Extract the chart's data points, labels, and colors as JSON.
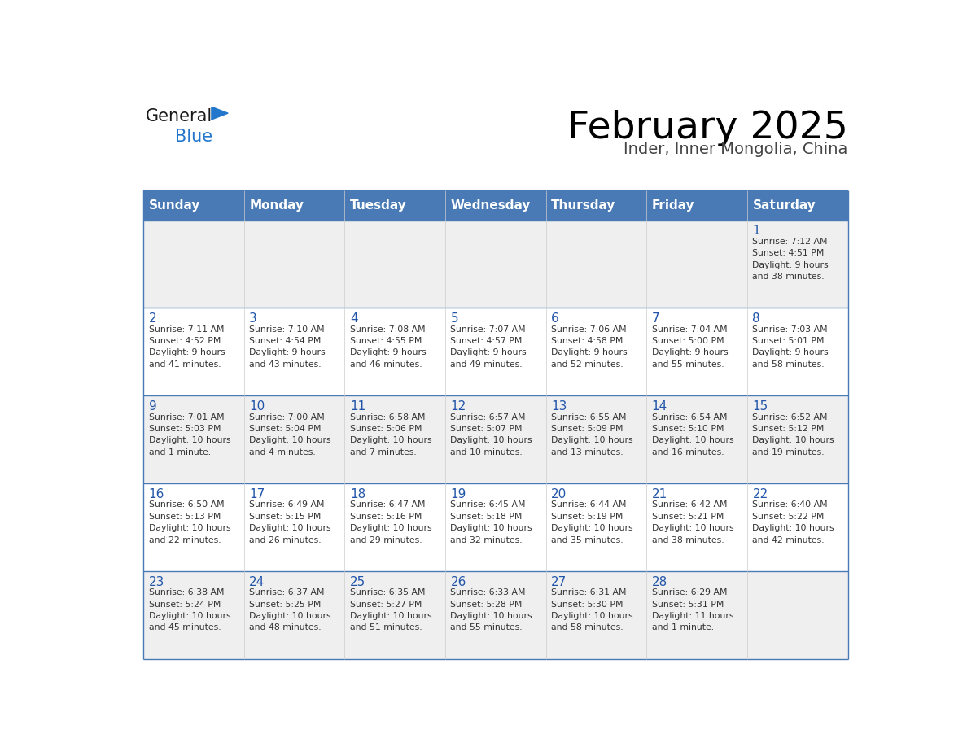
{
  "title": "February 2025",
  "subtitle": "Inder, Inner Mongolia, China",
  "header_color": "#4a7ab5",
  "header_text_color": "#ffffff",
  "cell_bg_odd": "#efefef",
  "cell_bg_even": "#ffffff",
  "day_text_color": "#2255aa",
  "info_text_color": "#333333",
  "border_color": "#4a7ab5",
  "days_of_week": [
    "Sunday",
    "Monday",
    "Tuesday",
    "Wednesday",
    "Thursday",
    "Friday",
    "Saturday"
  ],
  "weeks": [
    [
      {
        "day": "",
        "info": ""
      },
      {
        "day": "",
        "info": ""
      },
      {
        "day": "",
        "info": ""
      },
      {
        "day": "",
        "info": ""
      },
      {
        "day": "",
        "info": ""
      },
      {
        "day": "",
        "info": ""
      },
      {
        "day": "1",
        "info": "Sunrise: 7:12 AM\nSunset: 4:51 PM\nDaylight: 9 hours\nand 38 minutes."
      }
    ],
    [
      {
        "day": "2",
        "info": "Sunrise: 7:11 AM\nSunset: 4:52 PM\nDaylight: 9 hours\nand 41 minutes."
      },
      {
        "day": "3",
        "info": "Sunrise: 7:10 AM\nSunset: 4:54 PM\nDaylight: 9 hours\nand 43 minutes."
      },
      {
        "day": "4",
        "info": "Sunrise: 7:08 AM\nSunset: 4:55 PM\nDaylight: 9 hours\nand 46 minutes."
      },
      {
        "day": "5",
        "info": "Sunrise: 7:07 AM\nSunset: 4:57 PM\nDaylight: 9 hours\nand 49 minutes."
      },
      {
        "day": "6",
        "info": "Sunrise: 7:06 AM\nSunset: 4:58 PM\nDaylight: 9 hours\nand 52 minutes."
      },
      {
        "day": "7",
        "info": "Sunrise: 7:04 AM\nSunset: 5:00 PM\nDaylight: 9 hours\nand 55 minutes."
      },
      {
        "day": "8",
        "info": "Sunrise: 7:03 AM\nSunset: 5:01 PM\nDaylight: 9 hours\nand 58 minutes."
      }
    ],
    [
      {
        "day": "9",
        "info": "Sunrise: 7:01 AM\nSunset: 5:03 PM\nDaylight: 10 hours\nand 1 minute."
      },
      {
        "day": "10",
        "info": "Sunrise: 7:00 AM\nSunset: 5:04 PM\nDaylight: 10 hours\nand 4 minutes."
      },
      {
        "day": "11",
        "info": "Sunrise: 6:58 AM\nSunset: 5:06 PM\nDaylight: 10 hours\nand 7 minutes."
      },
      {
        "day": "12",
        "info": "Sunrise: 6:57 AM\nSunset: 5:07 PM\nDaylight: 10 hours\nand 10 minutes."
      },
      {
        "day": "13",
        "info": "Sunrise: 6:55 AM\nSunset: 5:09 PM\nDaylight: 10 hours\nand 13 minutes."
      },
      {
        "day": "14",
        "info": "Sunrise: 6:54 AM\nSunset: 5:10 PM\nDaylight: 10 hours\nand 16 minutes."
      },
      {
        "day": "15",
        "info": "Sunrise: 6:52 AM\nSunset: 5:12 PM\nDaylight: 10 hours\nand 19 minutes."
      }
    ],
    [
      {
        "day": "16",
        "info": "Sunrise: 6:50 AM\nSunset: 5:13 PM\nDaylight: 10 hours\nand 22 minutes."
      },
      {
        "day": "17",
        "info": "Sunrise: 6:49 AM\nSunset: 5:15 PM\nDaylight: 10 hours\nand 26 minutes."
      },
      {
        "day": "18",
        "info": "Sunrise: 6:47 AM\nSunset: 5:16 PM\nDaylight: 10 hours\nand 29 minutes."
      },
      {
        "day": "19",
        "info": "Sunrise: 6:45 AM\nSunset: 5:18 PM\nDaylight: 10 hours\nand 32 minutes."
      },
      {
        "day": "20",
        "info": "Sunrise: 6:44 AM\nSunset: 5:19 PM\nDaylight: 10 hours\nand 35 minutes."
      },
      {
        "day": "21",
        "info": "Sunrise: 6:42 AM\nSunset: 5:21 PM\nDaylight: 10 hours\nand 38 minutes."
      },
      {
        "day": "22",
        "info": "Sunrise: 6:40 AM\nSunset: 5:22 PM\nDaylight: 10 hours\nand 42 minutes."
      }
    ],
    [
      {
        "day": "23",
        "info": "Sunrise: 6:38 AM\nSunset: 5:24 PM\nDaylight: 10 hours\nand 45 minutes."
      },
      {
        "day": "24",
        "info": "Sunrise: 6:37 AM\nSunset: 5:25 PM\nDaylight: 10 hours\nand 48 minutes."
      },
      {
        "day": "25",
        "info": "Sunrise: 6:35 AM\nSunset: 5:27 PM\nDaylight: 10 hours\nand 51 minutes."
      },
      {
        "day": "26",
        "info": "Sunrise: 6:33 AM\nSunset: 5:28 PM\nDaylight: 10 hours\nand 55 minutes."
      },
      {
        "day": "27",
        "info": "Sunrise: 6:31 AM\nSunset: 5:30 PM\nDaylight: 10 hours\nand 58 minutes."
      },
      {
        "day": "28",
        "info": "Sunrise: 6:29 AM\nSunset: 5:31 PM\nDaylight: 11 hours\nand 1 minute."
      },
      {
        "day": "",
        "info": ""
      }
    ]
  ],
  "logo_general_color": "#1a1a1a",
  "logo_blue_color": "#2277cc",
  "logo_triangle_color": "#2277cc"
}
